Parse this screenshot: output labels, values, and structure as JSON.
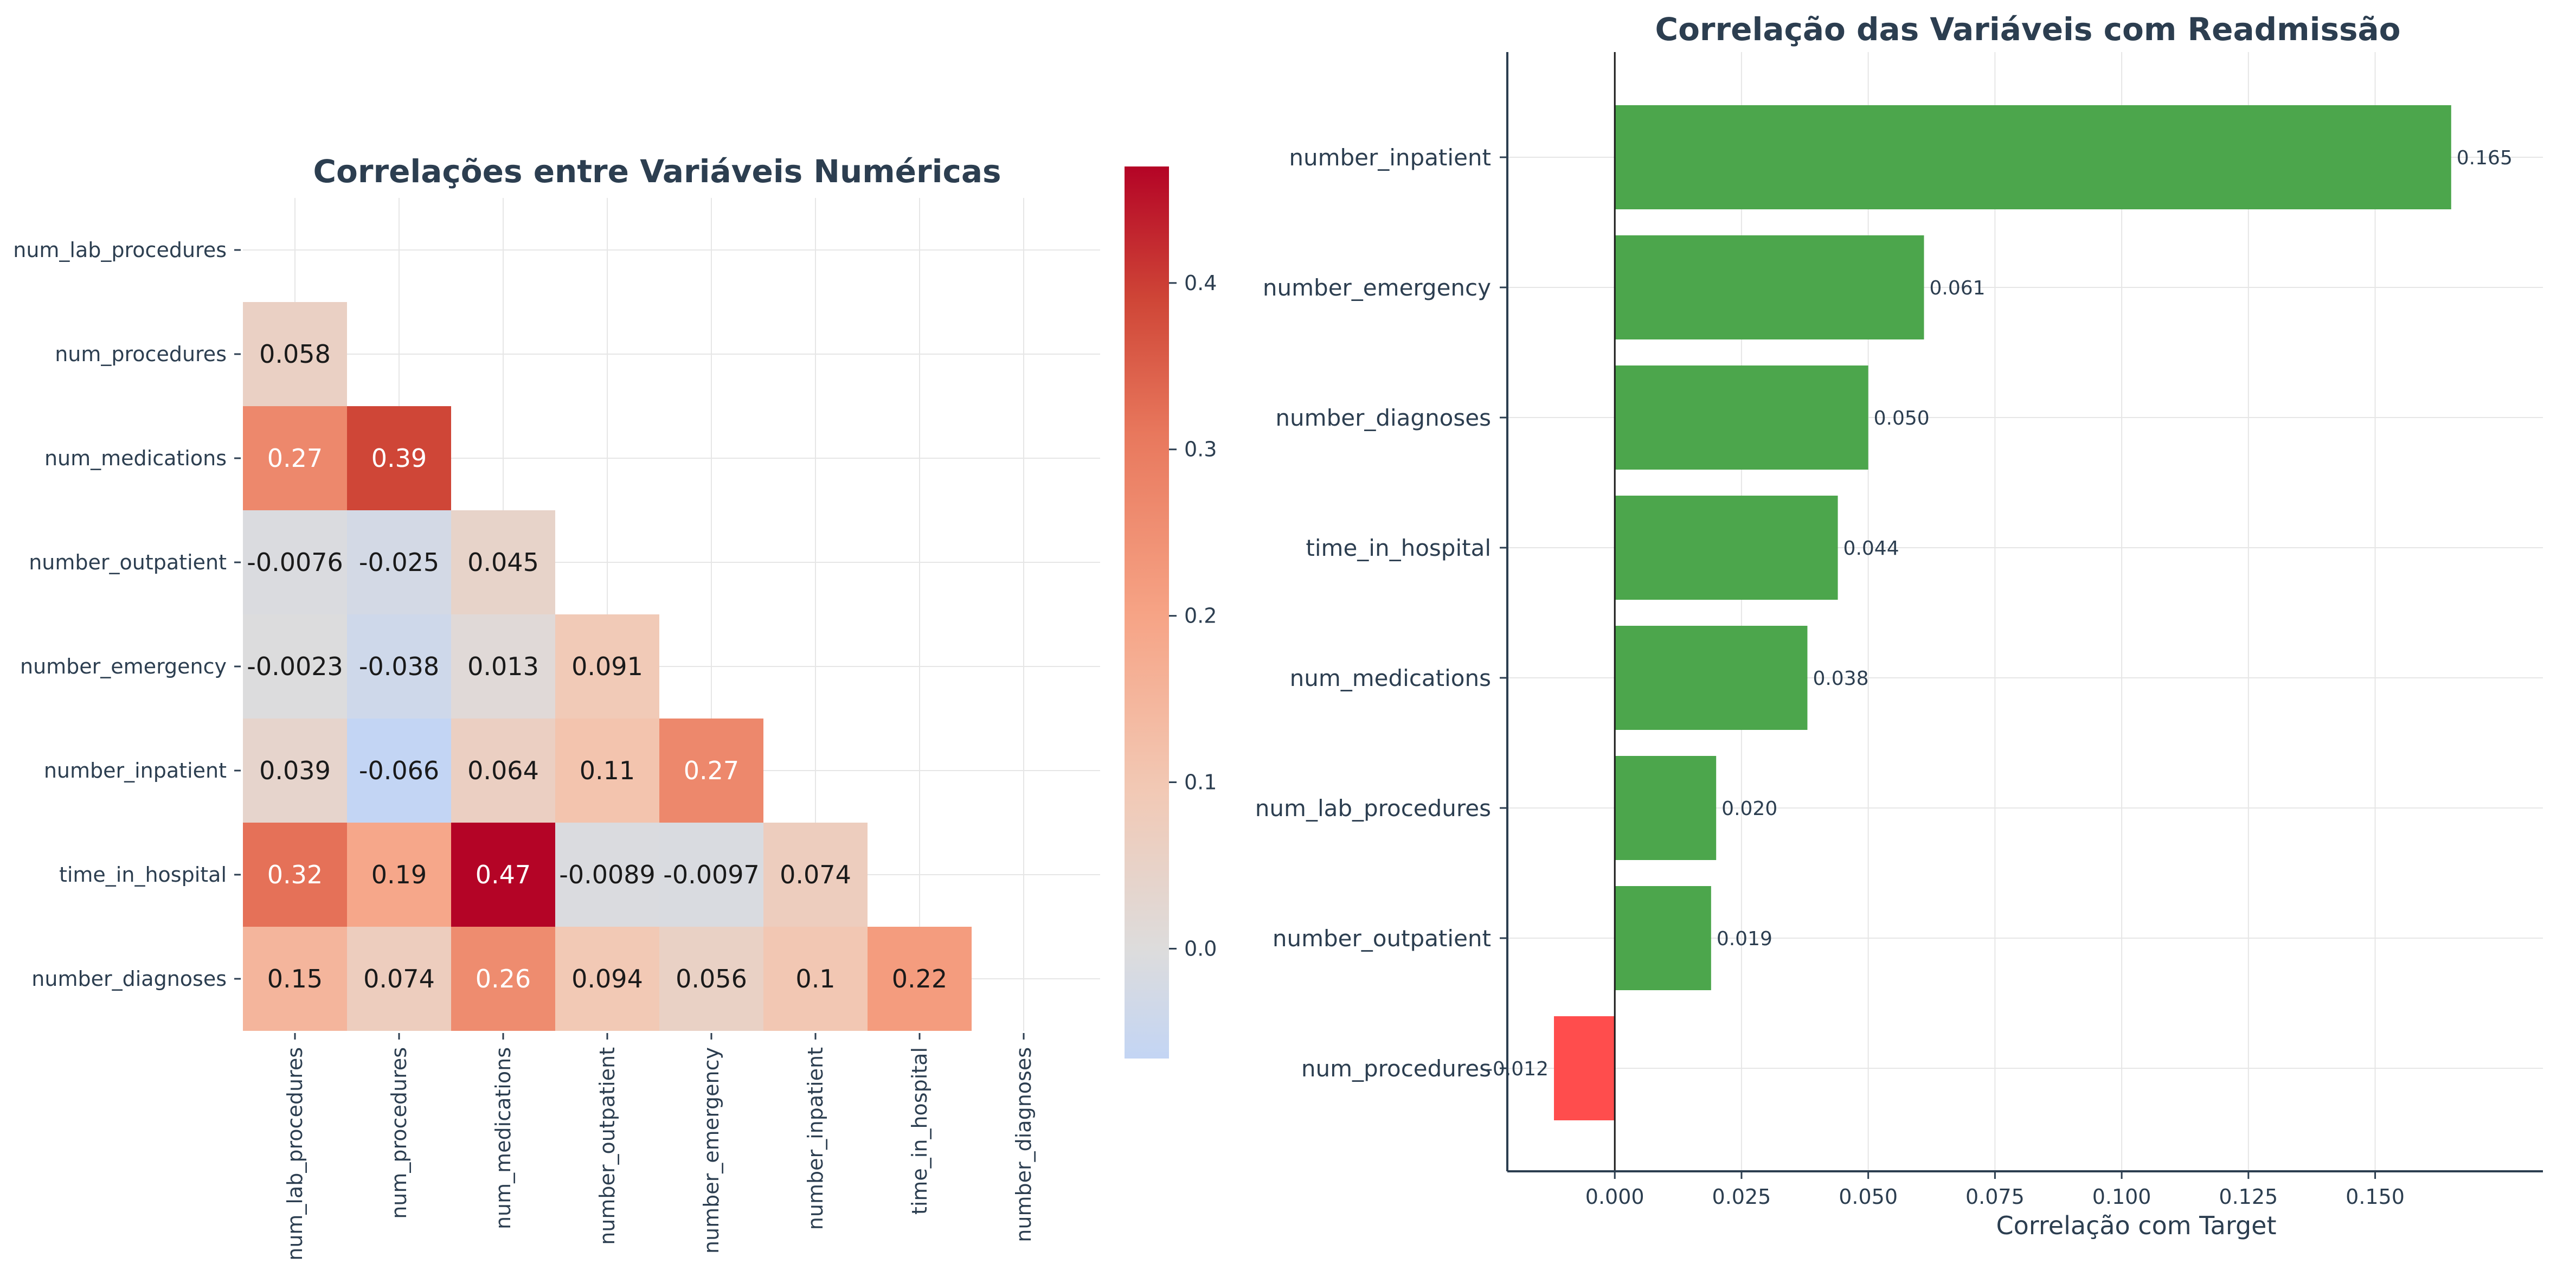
{
  "chart_data": [
    {
      "type": "heatmap",
      "title": "Correlações entre Variáveis Numéricas",
      "rows": [
        "num_lab_procedures",
        "num_procedures",
        "num_medications",
        "number_outpatient",
        "number_emergency",
        "number_inpatient",
        "time_in_hospital",
        "number_diagnoses"
      ],
      "columns": [
        "num_lab_procedures",
        "num_procedures",
        "num_medications",
        "number_outpatient",
        "number_emergency",
        "number_inpatient",
        "time_in_hospital",
        "number_diagnoses"
      ],
      "mask": "upper-triangle-including-diagonal",
      "cells": [
        {
          "row": 1,
          "col": 0,
          "value": 0.058,
          "label": "0.058"
        },
        {
          "row": 2,
          "col": 0,
          "value": 0.27,
          "label": "0.27"
        },
        {
          "row": 2,
          "col": 1,
          "value": 0.39,
          "label": "0.39"
        },
        {
          "row": 3,
          "col": 0,
          "value": -0.0076,
          "label": "-0.0076"
        },
        {
          "row": 3,
          "col": 1,
          "value": -0.025,
          "label": "-0.025"
        },
        {
          "row": 3,
          "col": 2,
          "value": 0.045,
          "label": "0.045"
        },
        {
          "row": 4,
          "col": 0,
          "value": -0.0023,
          "label": "-0.0023"
        },
        {
          "row": 4,
          "col": 1,
          "value": -0.038,
          "label": "-0.038"
        },
        {
          "row": 4,
          "col": 2,
          "value": 0.013,
          "label": "0.013"
        },
        {
          "row": 4,
          "col": 3,
          "value": 0.091,
          "label": "0.091"
        },
        {
          "row": 5,
          "col": 0,
          "value": 0.039,
          "label": "0.039"
        },
        {
          "row": 5,
          "col": 1,
          "value": -0.066,
          "label": "-0.066"
        },
        {
          "row": 5,
          "col": 2,
          "value": 0.064,
          "label": "0.064"
        },
        {
          "row": 5,
          "col": 3,
          "value": 0.11,
          "label": "0.11"
        },
        {
          "row": 5,
          "col": 4,
          "value": 0.27,
          "label": "0.27"
        },
        {
          "row": 6,
          "col": 0,
          "value": 0.32,
          "label": "0.32"
        },
        {
          "row": 6,
          "col": 1,
          "value": 0.19,
          "label": "0.19"
        },
        {
          "row": 6,
          "col": 2,
          "value": 0.47,
          "label": "0.47"
        },
        {
          "row": 6,
          "col": 3,
          "value": -0.0089,
          "label": "-0.0089"
        },
        {
          "row": 6,
          "col": 4,
          "value": -0.0097,
          "label": "-0.0097"
        },
        {
          "row": 6,
          "col": 5,
          "value": 0.074,
          "label": "0.074"
        },
        {
          "row": 7,
          "col": 0,
          "value": 0.15,
          "label": "0.15"
        },
        {
          "row": 7,
          "col": 1,
          "value": 0.074,
          "label": "0.074"
        },
        {
          "row": 7,
          "col": 2,
          "value": 0.26,
          "label": "0.26"
        },
        {
          "row": 7,
          "col": 3,
          "value": 0.094,
          "label": "0.094"
        },
        {
          "row": 7,
          "col": 4,
          "value": 0.056,
          "label": "0.056"
        },
        {
          "row": 7,
          "col": 5,
          "value": 0.1,
          "label": "0.1"
        },
        {
          "row": 7,
          "col": 6,
          "value": 0.22,
          "label": "0.22"
        }
      ],
      "colorbar": {
        "colormap": "coolwarm",
        "vmin": -0.066,
        "vmax": 0.47,
        "center": 0,
        "ticks": [
          0.0,
          0.1,
          0.2,
          0.3,
          0.4
        ],
        "tick_labels": [
          "0.0",
          "0.1",
          "0.2",
          "0.3",
          "0.4"
        ]
      },
      "grid": true
    },
    {
      "type": "bar",
      "orientation": "horizontal",
      "title": "Correlação das Variáveis com Readmissão",
      "xlabel": "Correlação com Target",
      "categories": [
        "number_inpatient",
        "number_emergency",
        "number_diagnoses",
        "time_in_hospital",
        "num_medications",
        "num_lab_procedures",
        "number_outpatient",
        "num_procedures"
      ],
      "values": [
        0.165,
        0.061,
        0.05,
        0.044,
        0.038,
        0.02,
        0.019,
        -0.012
      ],
      "value_labels": [
        "0.165",
        "0.061",
        "0.050",
        "0.044",
        "0.038",
        "0.020",
        "0.019",
        "-0.012"
      ],
      "xticks": [
        0.0,
        0.025,
        0.05,
        0.075,
        0.1,
        0.125,
        0.15
      ],
      "xtick_labels": [
        "0.000",
        "0.025",
        "0.050",
        "0.075",
        "0.100",
        "0.125",
        "0.150"
      ],
      "xlim": [
        -0.0212,
        0.1831
      ],
      "colors": {
        "positive": "#4ca64c",
        "negative": "#ff4d4d"
      },
      "grid": true
    }
  ],
  "colors": {
    "text": "#2c3e50",
    "axis": "#2c3e50"
  }
}
